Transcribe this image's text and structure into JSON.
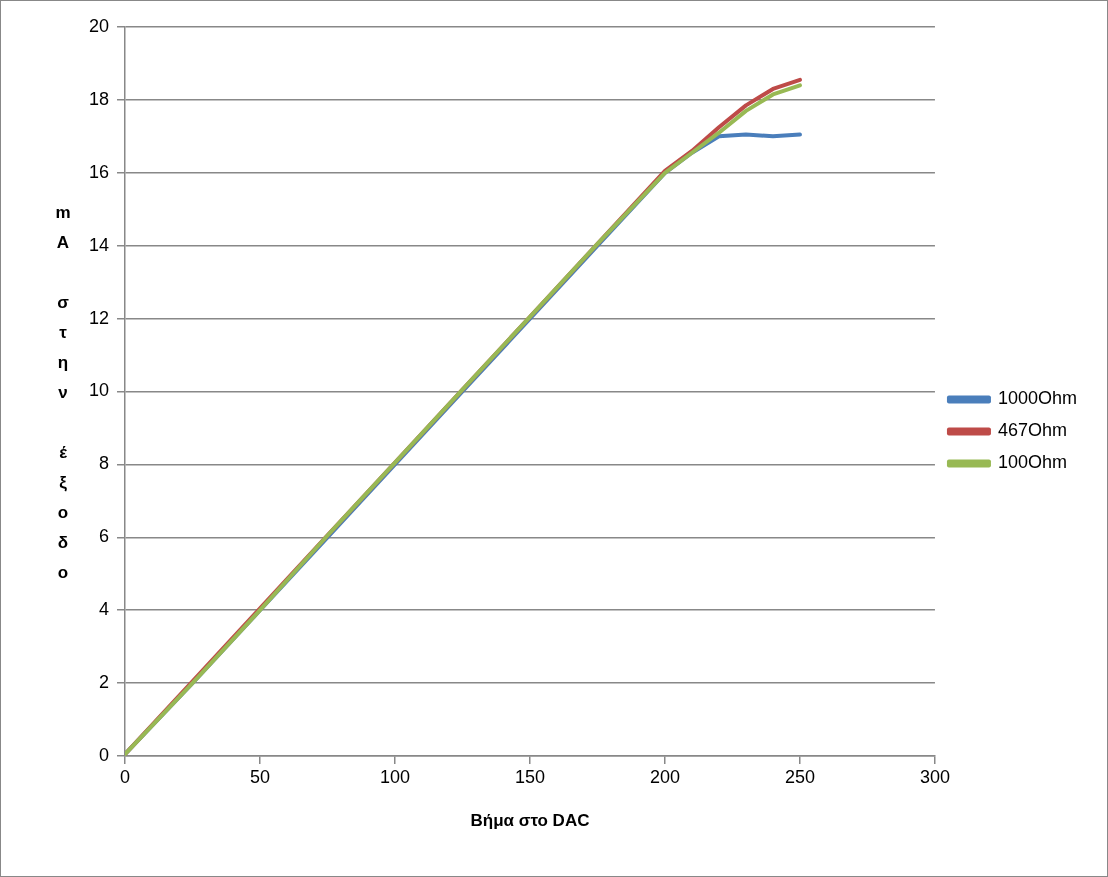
{
  "chart_data": {
    "type": "line",
    "xlabel": "Βήμα στο DAC",
    "ylabel": "mA στην έξοδο",
    "x": [
      0,
      25,
      50,
      75,
      100,
      125,
      150,
      175,
      200,
      210,
      220,
      230,
      240,
      250
    ],
    "series": [
      {
        "name": "1000Ohm",
        "color": "#4a7ebb",
        "values": [
          0.05,
          2.0,
          4.0,
          6.0,
          8.0,
          10.0,
          12.0,
          14.0,
          16.0,
          16.55,
          17.0,
          17.05,
          17.0,
          17.05
        ]
      },
      {
        "name": "467Ohm",
        "color": "#be4b48",
        "values": [
          0.05,
          2.05,
          4.05,
          6.05,
          8.05,
          10.05,
          12.05,
          14.05,
          16.05,
          16.6,
          17.25,
          17.85,
          18.3,
          18.55
        ]
      },
      {
        "name": "100Ohm",
        "color": "#98b954",
        "values": [
          0.05,
          2.0,
          4.0,
          6.05,
          8.05,
          10.05,
          12.05,
          14.05,
          16.0,
          16.55,
          17.1,
          17.7,
          18.15,
          18.4
        ]
      }
    ],
    "xlim": [
      0,
      300
    ],
    "xticks": [
      0,
      50,
      100,
      150,
      200,
      250,
      300
    ],
    "ylim": [
      0,
      20
    ],
    "yticks": [
      0,
      2,
      4,
      6,
      8,
      10,
      12,
      14,
      16,
      18,
      20
    ],
    "grid": "y",
    "legend": "right",
    "marker": "none",
    "line_style": "solid"
  }
}
